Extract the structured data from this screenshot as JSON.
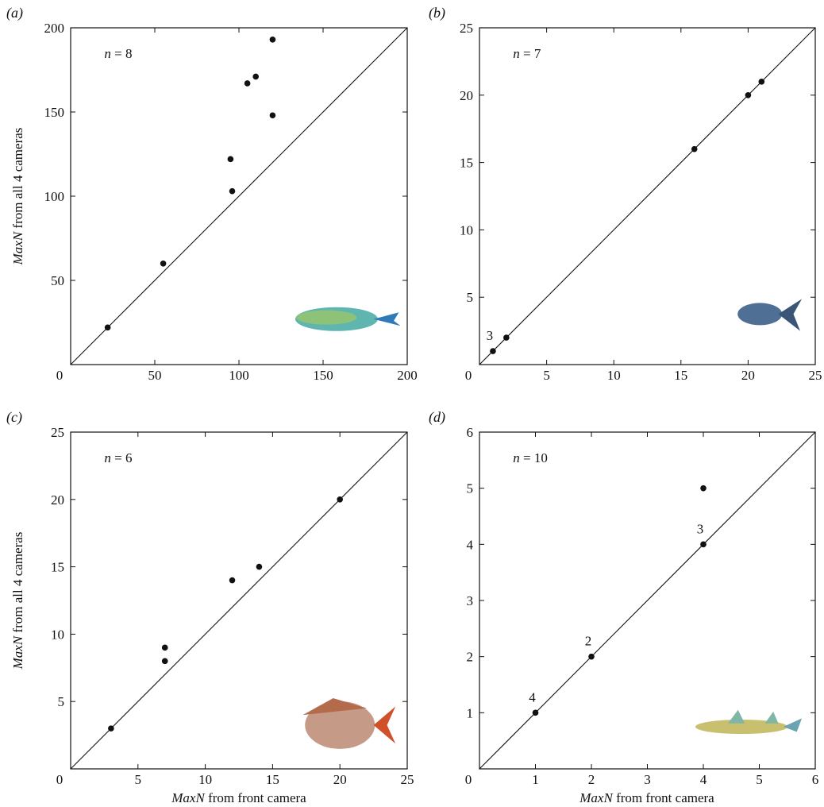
{
  "figure": {
    "x_axis_label_prefix": "MaxN",
    "x_axis_label_suffix": " from front camera",
    "y_axis_label_prefix": "MaxN",
    "y_axis_label_suffix": " from all 4 cameras"
  },
  "chart_data": [
    {
      "type": "scatter",
      "panel_label": "(a)",
      "n_text": "n = 8",
      "xlim": [
        0,
        200
      ],
      "ylim": [
        0,
        200
      ],
      "xticks": [
        0,
        50,
        100,
        150,
        200
      ],
      "yticks": [
        50,
        100,
        150,
        200
      ],
      "points": [
        {
          "x": 22,
          "y": 22
        },
        {
          "x": 55,
          "y": 60
        },
        {
          "x": 95,
          "y": 122
        },
        {
          "x": 96,
          "y": 103
        },
        {
          "x": 105,
          "y": 167
        },
        {
          "x": 110,
          "y": 171
        },
        {
          "x": 120,
          "y": 193
        },
        {
          "x": 120,
          "y": 148
        }
      ],
      "point_labels": [],
      "identity_line": true,
      "fish": "wrasse"
    },
    {
      "type": "scatter",
      "panel_label": "(b)",
      "n_text": "n = 7",
      "xlim": [
        0,
        25
      ],
      "ylim": [
        0,
        25
      ],
      "xticks": [
        0,
        5,
        10,
        15,
        20,
        25
      ],
      "yticks": [
        5,
        10,
        15,
        20,
        25
      ],
      "points": [
        {
          "x": 1,
          "y": 1
        },
        {
          "x": 2,
          "y": 2
        },
        {
          "x": 16,
          "y": 16
        },
        {
          "x": 20,
          "y": 20
        },
        {
          "x": 21,
          "y": 21
        }
      ],
      "point_labels": [
        {
          "x": 1,
          "y": 1,
          "text": "3"
        }
      ],
      "identity_line": true,
      "fish": "trevally"
    },
    {
      "type": "scatter",
      "panel_label": "(c)",
      "n_text": "n = 6",
      "xlim": [
        0,
        25
      ],
      "ylim": [
        0,
        25
      ],
      "xticks": [
        0,
        5,
        10,
        15,
        20,
        25
      ],
      "yticks": [
        5,
        10,
        15,
        20,
        25
      ],
      "points": [
        {
          "x": 3,
          "y": 3
        },
        {
          "x": 7,
          "y": 9
        },
        {
          "x": 7,
          "y": 8
        },
        {
          "x": 12,
          "y": 14
        },
        {
          "x": 14,
          "y": 15
        },
        {
          "x": 20,
          "y": 20
        }
      ],
      "point_labels": [],
      "identity_line": true,
      "fish": "snapper"
    },
    {
      "type": "scatter",
      "panel_label": "(d)",
      "n_text": "n = 10",
      "xlim": [
        0,
        6
      ],
      "ylim": [
        0,
        6
      ],
      "xticks": [
        0,
        1,
        2,
        3,
        4,
        5,
        6
      ],
      "yticks": [
        1,
        2,
        3,
        4,
        5,
        6
      ],
      "points": [
        {
          "x": 1,
          "y": 1
        },
        {
          "x": 2,
          "y": 2
        },
        {
          "x": 4,
          "y": 4
        },
        {
          "x": 4,
          "y": 5
        }
      ],
      "point_labels": [
        {
          "x": 1,
          "y": 1,
          "text": "4"
        },
        {
          "x": 2,
          "y": 2,
          "text": "2"
        },
        {
          "x": 4,
          "y": 4,
          "text": "3"
        }
      ],
      "identity_line": true,
      "fish": "shark"
    }
  ]
}
